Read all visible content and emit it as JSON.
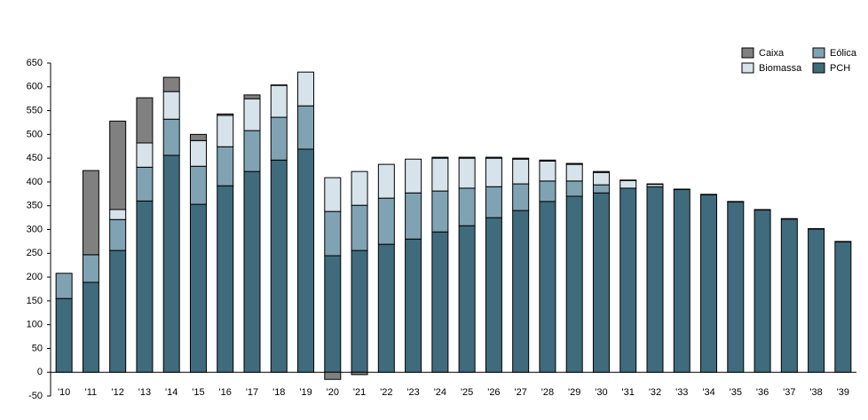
{
  "chart_data": {
    "type": "stacked-bar",
    "categories": [
      "'10",
      "'11",
      "'12",
      "'13",
      "'14",
      "'15",
      "'16",
      "'17",
      "'18",
      "'19",
      "'20",
      "'21",
      "'22",
      "'23",
      "'24",
      "'25",
      "'26",
      "'27",
      "'28",
      "'29",
      "'30",
      "'31",
      "'32",
      "'33",
      "'34",
      "'35",
      "'36",
      "'37",
      "'38",
      "'39"
    ],
    "series": [
      {
        "name": "PCH",
        "color": "#3f6b7c",
        "values": [
          155,
          189,
          256,
          360,
          456,
          353,
          392,
          422,
          446,
          469,
          245,
          256,
          269,
          280,
          295,
          308,
          325,
          340,
          359,
          370,
          377,
          387,
          390,
          384,
          373,
          358,
          341,
          322,
          301,
          274
        ]
      },
      {
        "name": "Eólica",
        "color": "#7fa3b3",
        "values": [
          53,
          58,
          65,
          71,
          76,
          80,
          82,
          86,
          90,
          91,
          93,
          95,
          97,
          97,
          86,
          79,
          65,
          56,
          43,
          32,
          17,
          0,
          0,
          0,
          0,
          0,
          0,
          0,
          0,
          0
        ]
      },
      {
        "name": "Biomassa",
        "color": "#d6e3ea",
        "values": [
          0,
          0,
          21,
          51,
          58,
          54,
          66,
          67,
          67,
          71,
          71,
          71,
          71,
          71,
          69,
          63,
          60,
          52,
          42,
          35,
          26,
          16,
          5,
          0,
          0,
          0,
          0,
          0,
          0,
          0
        ]
      },
      {
        "name": "Caixa",
        "color": "#808080",
        "values": [
          0,
          177,
          186,
          95,
          30,
          13,
          3,
          8,
          1,
          0,
          -15,
          -5,
          0,
          0,
          2,
          2,
          2,
          2,
          2,
          2,
          2,
          1,
          1,
          1,
          1,
          1,
          1,
          1,
          1,
          1
        ]
      }
    ],
    "ylim": [
      -50,
      650
    ],
    "yticks": [
      -50,
      0,
      50,
      100,
      150,
      200,
      250,
      300,
      350,
      400,
      450,
      500,
      550,
      600,
      650
    ],
    "legend": "top-right"
  }
}
